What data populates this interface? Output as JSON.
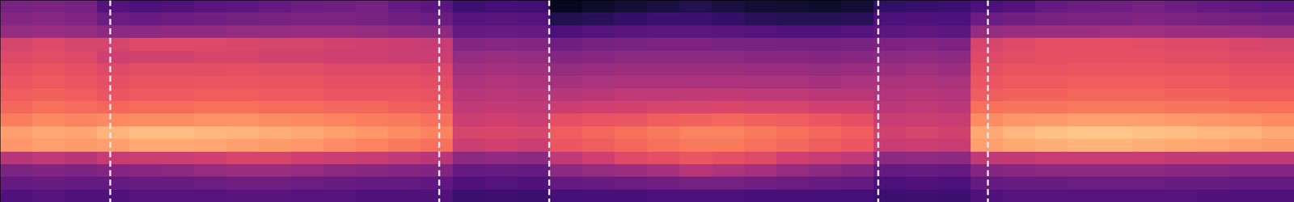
{
  "chart_data": {
    "type": "heatmap",
    "color": "magma",
    "tick_labels": false,
    "xlim": [
      0,
      40
    ],
    "ylim": [
      0,
      16
    ],
    "color_range": [
      0,
      1
    ],
    "vlines": {
      "x": [
        3.4,
        13.57,
        16.97,
        27.14,
        30.53
      ],
      "line_style": "dashed",
      "color": "#eee4ee"
    },
    "cells": [
      [
        0.35,
        0.36,
        0.34,
        0.26,
        0.24,
        0.25,
        0.27,
        0.28,
        0.3,
        0.32,
        0.33,
        0.34,
        0.3,
        0.28,
        0.2,
        0.22,
        0.21,
        0.06,
        0.08,
        0.1,
        0.12,
        0.14,
        0.12,
        0.1,
        0.09,
        0.08,
        0.1,
        0.18,
        0.19,
        0.2,
        0.24,
        0.26,
        0.3,
        0.32,
        0.33,
        0.34,
        0.32,
        0.3,
        0.29,
        0.28
      ],
      [
        0.38,
        0.39,
        0.37,
        0.32,
        0.31,
        0.32,
        0.33,
        0.34,
        0.35,
        0.36,
        0.36,
        0.35,
        0.33,
        0.32,
        0.26,
        0.27,
        0.26,
        0.14,
        0.16,
        0.18,
        0.2,
        0.2,
        0.18,
        0.16,
        0.15,
        0.15,
        0.16,
        0.24,
        0.25,
        0.24,
        0.32,
        0.33,
        0.35,
        0.36,
        0.36,
        0.37,
        0.36,
        0.35,
        0.34,
        0.33
      ],
      [
        0.42,
        0.43,
        0.42,
        0.4,
        0.4,
        0.41,
        0.41,
        0.42,
        0.42,
        0.43,
        0.43,
        0.42,
        0.41,
        0.4,
        0.3,
        0.31,
        0.3,
        0.24,
        0.26,
        0.27,
        0.28,
        0.28,
        0.27,
        0.26,
        0.25,
        0.25,
        0.26,
        0.28,
        0.29,
        0.28,
        0.42,
        0.43,
        0.44,
        0.44,
        0.45,
        0.45,
        0.44,
        0.44,
        0.43,
        0.42
      ],
      [
        0.58,
        0.6,
        0.58,
        0.58,
        0.6,
        0.6,
        0.6,
        0.59,
        0.58,
        0.58,
        0.57,
        0.56,
        0.55,
        0.54,
        0.38,
        0.39,
        0.38,
        0.33,
        0.34,
        0.35,
        0.36,
        0.36,
        0.35,
        0.35,
        0.34,
        0.34,
        0.35,
        0.36,
        0.37,
        0.36,
        0.58,
        0.6,
        0.62,
        0.62,
        0.62,
        0.61,
        0.6,
        0.6,
        0.59,
        0.58
      ],
      [
        0.6,
        0.61,
        0.6,
        0.56,
        0.57,
        0.57,
        0.58,
        0.58,
        0.57,
        0.57,
        0.56,
        0.56,
        0.55,
        0.55,
        0.42,
        0.43,
        0.42,
        0.38,
        0.39,
        0.4,
        0.4,
        0.4,
        0.4,
        0.39,
        0.39,
        0.38,
        0.39,
        0.4,
        0.41,
        0.4,
        0.6,
        0.61,
        0.62,
        0.62,
        0.62,
        0.62,
        0.61,
        0.61,
        0.6,
        0.6
      ],
      [
        0.62,
        0.63,
        0.62,
        0.6,
        0.61,
        0.61,
        0.61,
        0.62,
        0.61,
        0.61,
        0.6,
        0.6,
        0.6,
        0.59,
        0.45,
        0.46,
        0.45,
        0.42,
        0.43,
        0.44,
        0.44,
        0.44,
        0.44,
        0.43,
        0.43,
        0.42,
        0.43,
        0.44,
        0.45,
        0.44,
        0.62,
        0.63,
        0.63,
        0.64,
        0.64,
        0.64,
        0.63,
        0.63,
        0.62,
        0.62
      ],
      [
        0.64,
        0.65,
        0.64,
        0.62,
        0.63,
        0.63,
        0.64,
        0.64,
        0.63,
        0.63,
        0.62,
        0.62,
        0.62,
        0.61,
        0.48,
        0.49,
        0.48,
        0.46,
        0.47,
        0.48,
        0.48,
        0.48,
        0.48,
        0.47,
        0.47,
        0.46,
        0.47,
        0.47,
        0.48,
        0.47,
        0.64,
        0.65,
        0.65,
        0.66,
        0.66,
        0.66,
        0.65,
        0.65,
        0.64,
        0.64
      ],
      [
        0.66,
        0.67,
        0.66,
        0.64,
        0.65,
        0.65,
        0.66,
        0.66,
        0.65,
        0.65,
        0.64,
        0.64,
        0.64,
        0.63,
        0.5,
        0.51,
        0.5,
        0.5,
        0.51,
        0.52,
        0.52,
        0.53,
        0.53,
        0.52,
        0.52,
        0.51,
        0.51,
        0.49,
        0.5,
        0.49,
        0.66,
        0.67,
        0.67,
        0.68,
        0.68,
        0.68,
        0.67,
        0.67,
        0.66,
        0.66
      ],
      [
        0.68,
        0.7,
        0.69,
        0.68,
        0.69,
        0.69,
        0.7,
        0.7,
        0.69,
        0.69,
        0.68,
        0.68,
        0.67,
        0.66,
        0.52,
        0.53,
        0.52,
        0.55,
        0.56,
        0.57,
        0.58,
        0.58,
        0.59,
        0.58,
        0.58,
        0.56,
        0.56,
        0.51,
        0.52,
        0.51,
        0.7,
        0.71,
        0.71,
        0.72,
        0.72,
        0.72,
        0.71,
        0.71,
        0.7,
        0.7
      ],
      [
        0.73,
        0.75,
        0.74,
        0.75,
        0.76,
        0.76,
        0.77,
        0.77,
        0.76,
        0.75,
        0.74,
        0.73,
        0.72,
        0.7,
        0.55,
        0.56,
        0.55,
        0.62,
        0.63,
        0.64,
        0.66,
        0.67,
        0.68,
        0.67,
        0.66,
        0.64,
        0.62,
        0.54,
        0.55,
        0.54,
        0.76,
        0.78,
        0.79,
        0.8,
        0.8,
        0.8,
        0.79,
        0.78,
        0.77,
        0.76
      ],
      [
        0.8,
        0.82,
        0.81,
        0.84,
        0.86,
        0.86,
        0.85,
        0.84,
        0.83,
        0.82,
        0.8,
        0.78,
        0.76,
        0.74,
        0.58,
        0.59,
        0.58,
        0.66,
        0.68,
        0.7,
        0.72,
        0.74,
        0.74,
        0.72,
        0.7,
        0.68,
        0.66,
        0.57,
        0.58,
        0.57,
        0.82,
        0.85,
        0.87,
        0.88,
        0.88,
        0.87,
        0.86,
        0.85,
        0.84,
        0.82
      ],
      [
        0.78,
        0.8,
        0.79,
        0.8,
        0.82,
        0.82,
        0.81,
        0.8,
        0.79,
        0.78,
        0.76,
        0.74,
        0.72,
        0.7,
        0.55,
        0.56,
        0.55,
        0.64,
        0.66,
        0.68,
        0.7,
        0.72,
        0.72,
        0.7,
        0.68,
        0.66,
        0.64,
        0.54,
        0.55,
        0.54,
        0.8,
        0.82,
        0.83,
        0.84,
        0.84,
        0.83,
        0.82,
        0.81,
        0.8,
        0.79
      ],
      [
        0.5,
        0.52,
        0.5,
        0.54,
        0.55,
        0.55,
        0.56,
        0.58,
        0.58,
        0.56,
        0.55,
        0.54,
        0.52,
        0.5,
        0.4,
        0.41,
        0.4,
        0.52,
        0.56,
        0.6,
        0.62,
        0.64,
        0.62,
        0.6,
        0.56,
        0.54,
        0.52,
        0.4,
        0.41,
        0.4,
        0.52,
        0.53,
        0.54,
        0.54,
        0.54,
        0.54,
        0.53,
        0.53,
        0.52,
        0.52
      ],
      [
        0.36,
        0.37,
        0.36,
        0.38,
        0.39,
        0.4,
        0.42,
        0.44,
        0.44,
        0.42,
        0.4,
        0.39,
        0.38,
        0.37,
        0.3,
        0.31,
        0.3,
        0.4,
        0.42,
        0.44,
        0.46,
        0.5,
        0.48,
        0.46,
        0.42,
        0.4,
        0.38,
        0.3,
        0.31,
        0.3,
        0.38,
        0.39,
        0.4,
        0.4,
        0.4,
        0.4,
        0.39,
        0.39,
        0.38,
        0.38
      ],
      [
        0.3,
        0.31,
        0.3,
        0.3,
        0.31,
        0.31,
        0.32,
        0.33,
        0.33,
        0.32,
        0.31,
        0.3,
        0.3,
        0.29,
        0.25,
        0.26,
        0.25,
        0.3,
        0.31,
        0.32,
        0.33,
        0.34,
        0.34,
        0.33,
        0.32,
        0.31,
        0.3,
        0.24,
        0.25,
        0.24,
        0.3,
        0.31,
        0.31,
        0.32,
        0.32,
        0.32,
        0.31,
        0.31,
        0.3,
        0.3
      ],
      [
        0.25,
        0.26,
        0.25,
        0.25,
        0.26,
        0.26,
        0.26,
        0.27,
        0.27,
        0.26,
        0.26,
        0.25,
        0.25,
        0.25,
        0.2,
        0.21,
        0.2,
        0.22,
        0.23,
        0.23,
        0.24,
        0.24,
        0.24,
        0.23,
        0.23,
        0.22,
        0.22,
        0.2,
        0.21,
        0.2,
        0.25,
        0.26,
        0.26,
        0.26,
        0.26,
        0.26,
        0.26,
        0.25,
        0.25,
        0.25
      ]
    ]
  }
}
